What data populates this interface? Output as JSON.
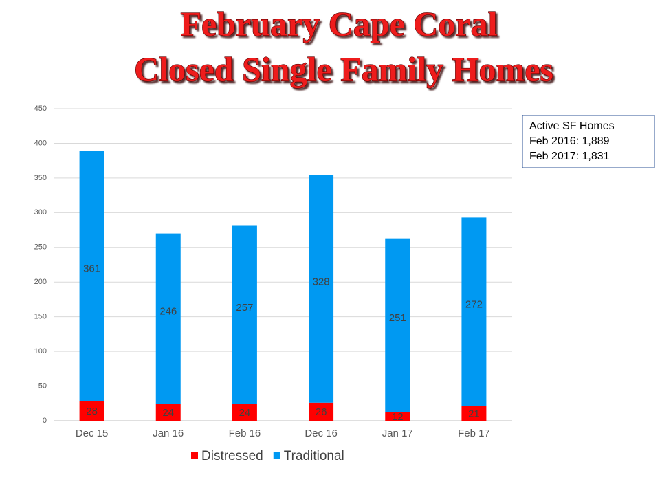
{
  "chart_data": {
    "type": "stacked_bar",
    "title": [
      "February Cape Coral",
      "Closed Single Family Homes"
    ],
    "categories": [
      "Dec 15",
      "Jan 16",
      "Feb 16",
      "Dec 16",
      "Jan 17",
      "Feb 17"
    ],
    "series": [
      {
        "name": "Distressed",
        "color": "#ff0000",
        "values": [
          28,
          24,
          24,
          26,
          12,
          21
        ]
      },
      {
        "name": "Traditional",
        "color": "#0099f2",
        "values": [
          361,
          246,
          257,
          328,
          251,
          272
        ]
      }
    ],
    "ylim": [
      0,
      450
    ],
    "yticks": [
      0,
      50,
      100,
      150,
      200,
      250,
      300,
      350,
      400,
      450
    ],
    "grid": true,
    "legend": "bottom",
    "annotation": [
      "Active SF Homes",
      "Feb 2016: 1,889",
      "Feb 2017: 1,831"
    ]
  }
}
